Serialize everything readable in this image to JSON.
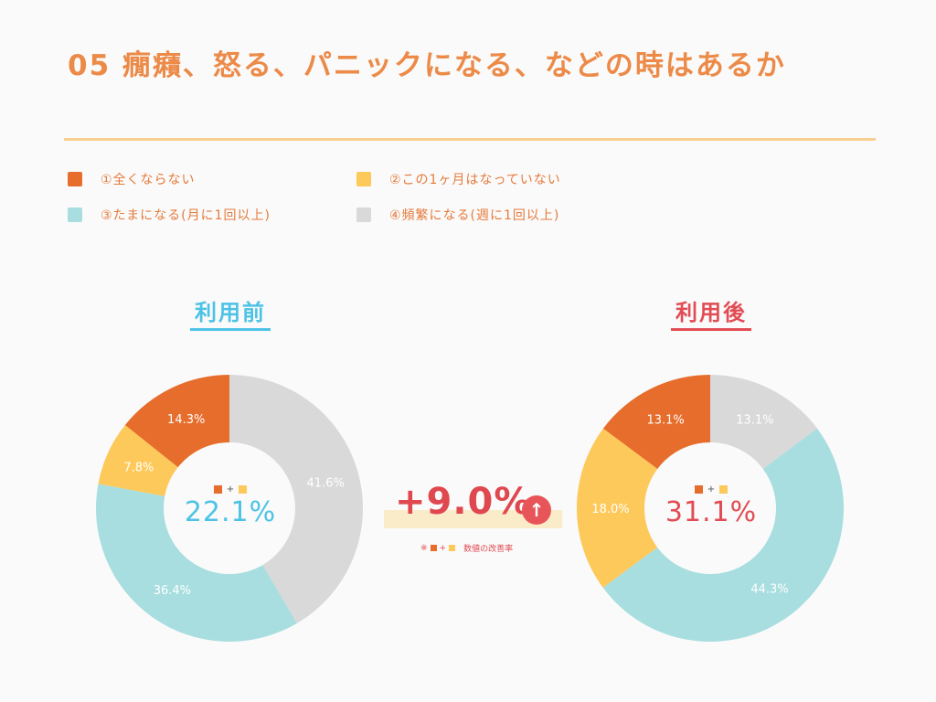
{
  "title": "05 癇癪、怒る、パニックになる、などの時はあるか",
  "legend": [
    {
      "label": "①全くならない",
      "color": "#e66d2b"
    },
    {
      "label": "②この1ヶ月はなっていない",
      "color": "#fdc95a"
    },
    {
      "label": "③たまになる(月に1回以上)",
      "color": "#a8dedf"
    },
    {
      "label": "④頻繁になる(週に1回以上)",
      "color": "#d9d9d9"
    }
  ],
  "chart_data": [
    {
      "type": "pie",
      "title": "利用前",
      "title_color": "#4cc3e6",
      "categories": [
        "①全くならない",
        "②この1ヶ月はなっていない",
        "③たまになる(月に1回以上)",
        "④頻繁になる(週に1回以上)"
      ],
      "values": [
        14.3,
        7.8,
        36.4,
        41.6
      ],
      "labels": [
        "14.3%",
        "7.8%",
        "36.4%",
        "41.6%"
      ],
      "center_value": "22.1%",
      "center_color": "#4cc3e6"
    },
    {
      "type": "pie",
      "title": "利用後",
      "title_color": "#e24c54",
      "categories": [
        "①全くならない",
        "②この1ヶ月はなっていない",
        "③たまになる(月に1回以上)",
        "④頻繁になる(週に1回以上)"
      ],
      "values": [
        13.1,
        18.0,
        44.3,
        13.1
      ],
      "labels": [
        "13.1%",
        "18.0%",
        "44.3%",
        "13.1%"
      ],
      "center_value": "31.1%",
      "center_color": "#e24c54"
    }
  ],
  "improvement": {
    "value": "+9.0%",
    "arrow": "↑",
    "note_prefix": "※",
    "note_plus": "+",
    "note_text": "数値の改善率"
  },
  "center_plus": "+"
}
